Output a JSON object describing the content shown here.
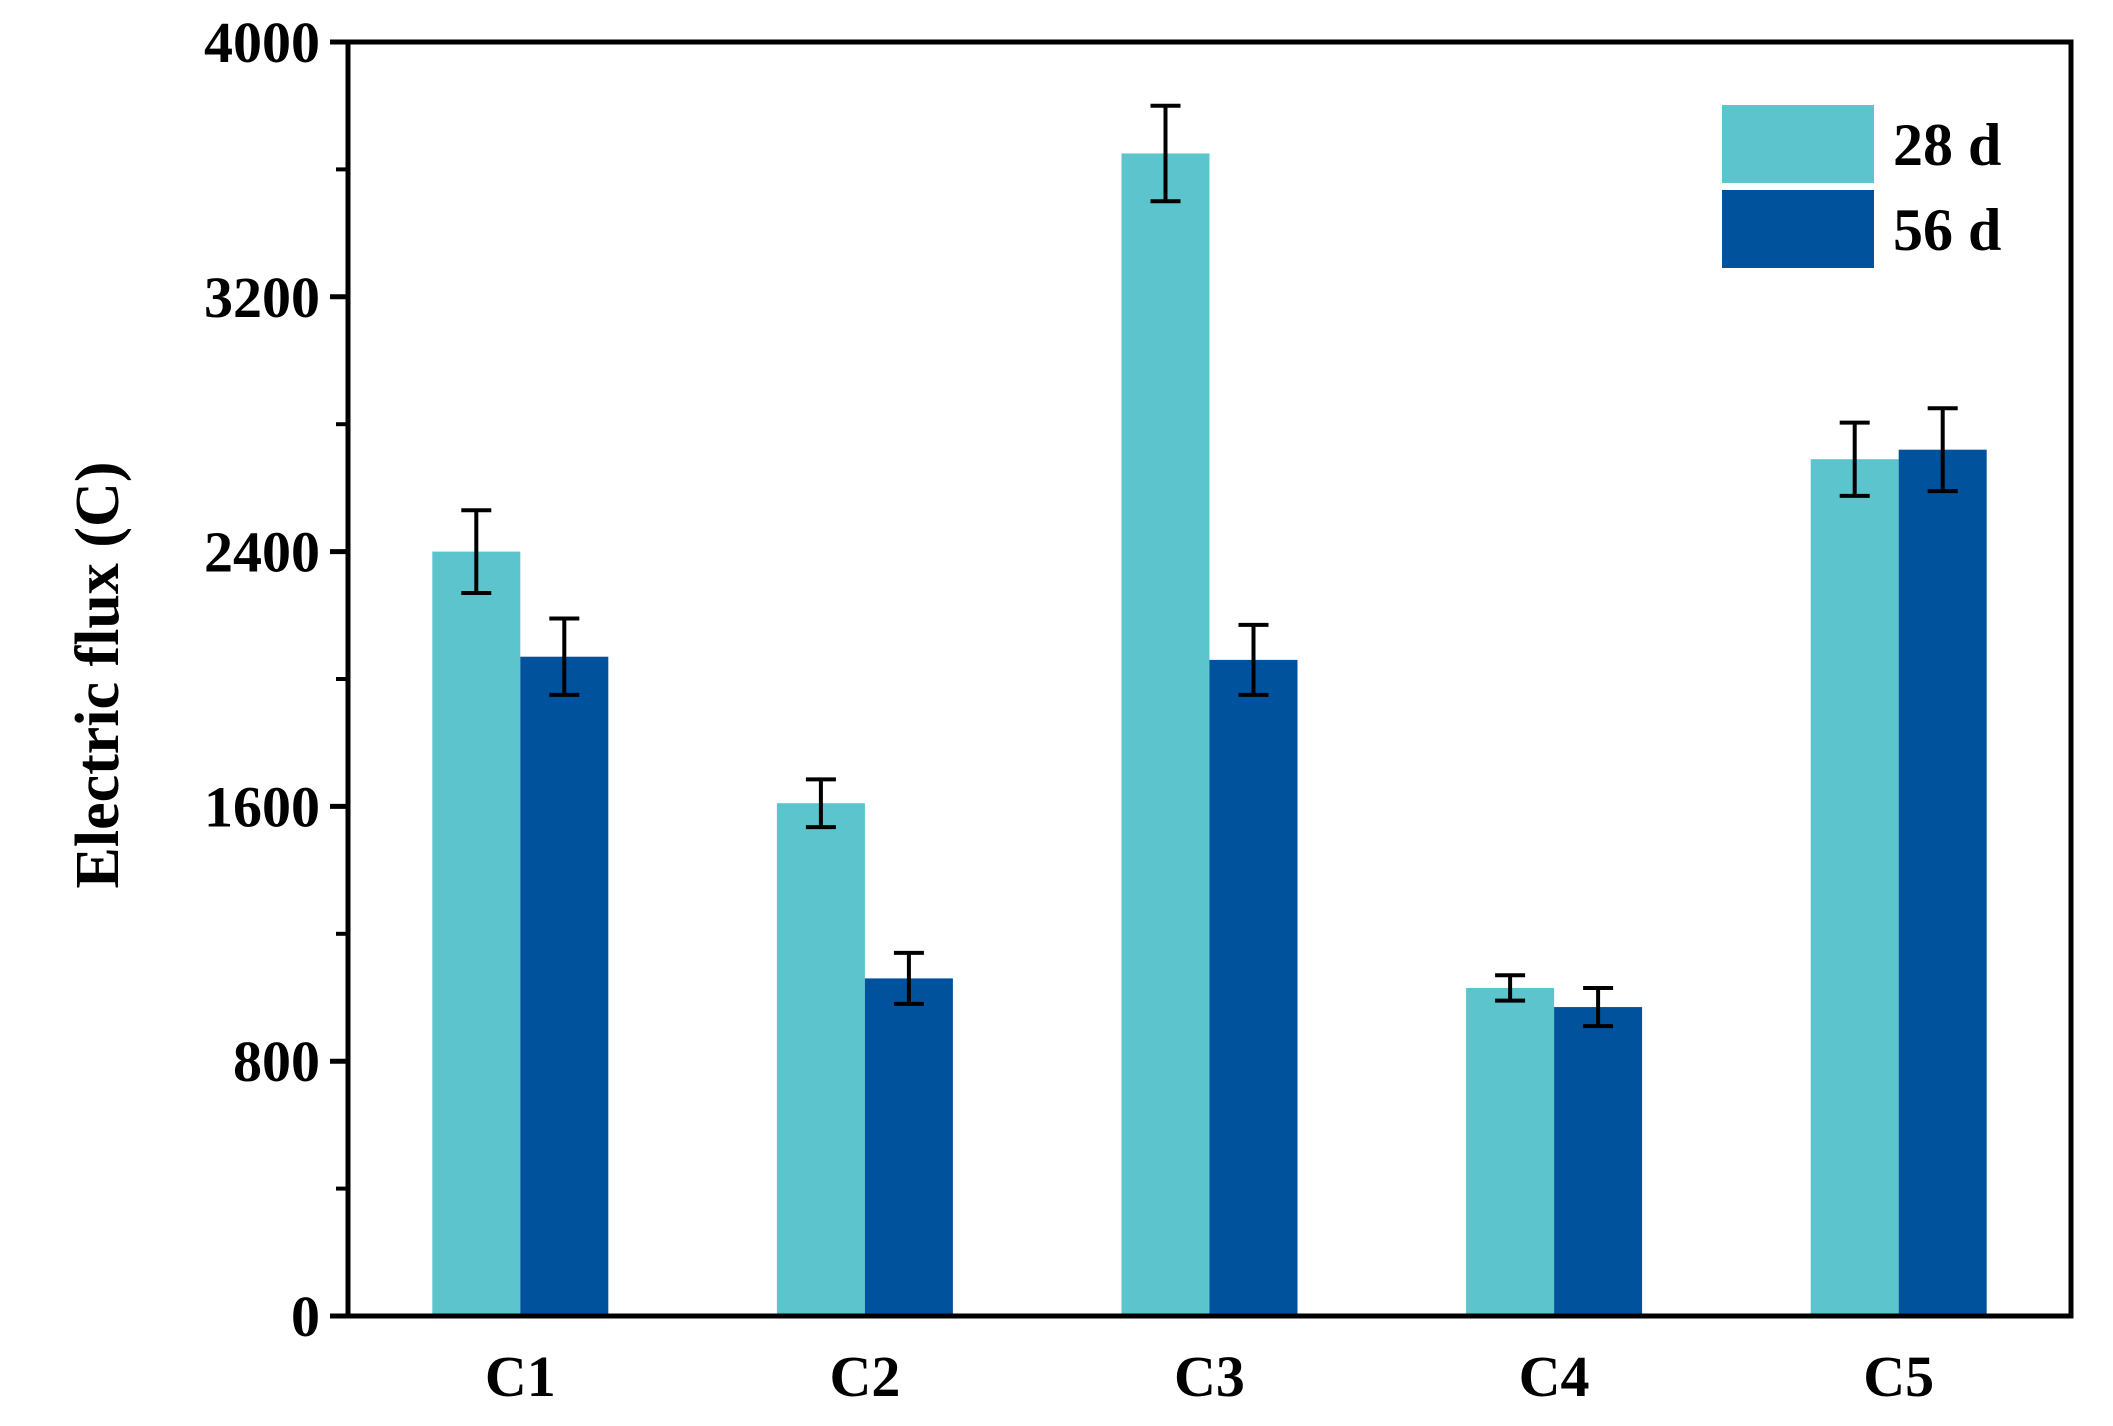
{
  "chart_data": {
    "type": "bar",
    "title": "",
    "xlabel": "",
    "ylabel": "Electric flux (C)",
    "ylim": [
      0,
      4000
    ],
    "yticks": [
      0,
      800,
      1600,
      2400,
      3200,
      4000
    ],
    "categories": [
      "C1",
      "C2",
      "C3",
      "C4",
      "C5"
    ],
    "series": [
      {
        "name": "28 d",
        "color": "#5bc4cc",
        "values": [
          2400,
          1610,
          3650,
          1030,
          2690
        ],
        "errors": [
          130,
          75,
          150,
          40,
          115
        ]
      },
      {
        "name": "56 d",
        "color": "#00529c",
        "values": [
          2070,
          1060,
          2060,
          970,
          2720
        ],
        "errors": [
          120,
          80,
          110,
          60,
          130
        ]
      }
    ],
    "legend_position": "top-right",
    "grid": false
  }
}
